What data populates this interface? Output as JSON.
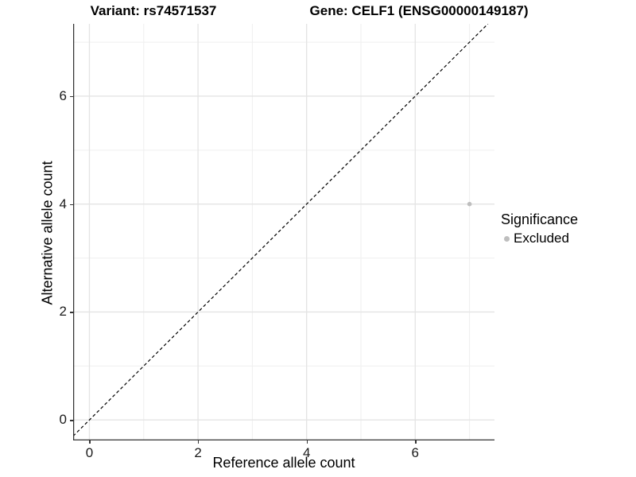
{
  "colors": {
    "background": "#ffffff",
    "grid_major": "#e4e4e4",
    "grid_minor": "#efefef",
    "axis_line": "#333333",
    "tick_text": "#1a1a1a",
    "title_text": "#000000",
    "point_excluded": "#bebebe",
    "reference_line": "#000000"
  },
  "chart_data": {
    "type": "scatter",
    "titles": {
      "variant": "Variant: rs74571537",
      "gene": "Gene: CELF1 (ENSG00000149187)"
    },
    "xlabel": "Reference allele count",
    "ylabel": "Alternative allele count",
    "x_ticks": [
      0,
      2,
      4,
      6
    ],
    "y_ticks": [
      0,
      2,
      4,
      6
    ],
    "x_minor_gridlines": [
      1,
      3,
      5,
      7
    ],
    "y_minor_gridlines": [
      1,
      3,
      5,
      7
    ],
    "xlim": [
      -0.3,
      7.46
    ],
    "ylim": [
      -0.38,
      7.34
    ],
    "grid": true,
    "points": [
      {
        "x": 7,
        "y": 4,
        "series": "Excluded"
      }
    ],
    "reference_line": {
      "kind": "identity y=x",
      "style": "dashed"
    },
    "legend": {
      "position": "right",
      "title": "Significance",
      "items": [
        {
          "label": "Excluded",
          "color": "#bebebe"
        }
      ]
    }
  }
}
